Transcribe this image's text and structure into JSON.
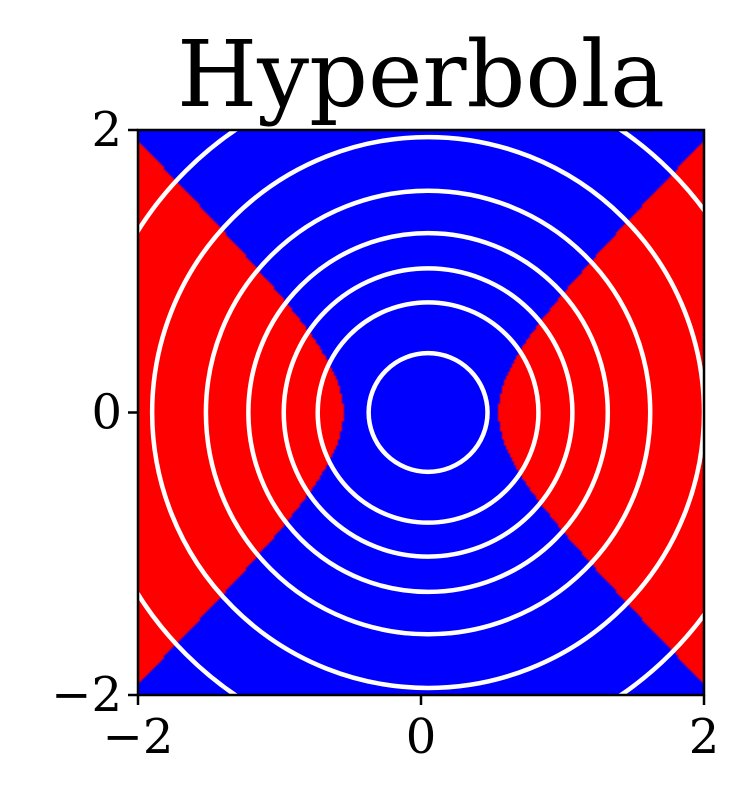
{
  "chart_data": {
    "type": "heatmap",
    "title": "Hyperbola",
    "xlabel": "",
    "ylabel": "",
    "xlim": [
      -2,
      2
    ],
    "ylim": [
      -2,
      2
    ],
    "grid": false,
    "region_rule": "red where x^2 - y^2 > 0.3, blue elsewhere",
    "region_colors": {
      "positive": "#ff0000",
      "negative": "#0000ff"
    },
    "contour_color": "#ffffff",
    "contours": [
      {
        "name": "circle-1",
        "center": [
          0.05,
          0.0
        ],
        "radius": 0.42
      },
      {
        "name": "circle-2",
        "center": [
          0.05,
          0.0
        ],
        "radius": 0.78
      },
      {
        "name": "circle-3",
        "center": [
          0.05,
          0.0
        ],
        "radius": 1.02
      },
      {
        "name": "circle-4",
        "center": [
          0.05,
          0.0
        ],
        "radius": 1.27
      },
      {
        "name": "circle-5",
        "center": [
          0.05,
          0.0
        ],
        "radius": 1.57
      },
      {
        "name": "circle-6",
        "center": [
          0.05,
          0.0
        ],
        "radius": 1.95
      },
      {
        "name": "circle-7",
        "center": [
          0.05,
          0.0
        ],
        "radius": 2.42
      }
    ],
    "xticks": [
      {
        "value": -2,
        "label": "−2"
      },
      {
        "value": 0,
        "label": "0"
      },
      {
        "value": 2,
        "label": "2"
      }
    ],
    "yticks": [
      {
        "value": -2,
        "label": "−2"
      },
      {
        "value": 0,
        "label": "0"
      },
      {
        "value": 2,
        "label": "2"
      }
    ]
  }
}
